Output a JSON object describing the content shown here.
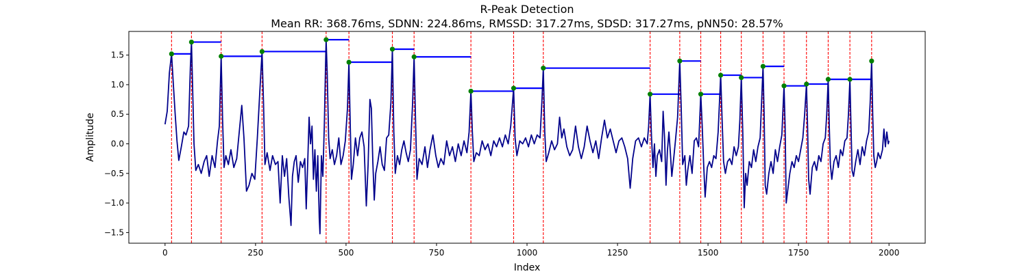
{
  "chart_data": {
    "type": "line",
    "title": "R-Peak Detection",
    "subtitle": "Mean RR: 368.76ms, SDNN: 224.86ms, RMSSD: 317.27ms, SDSD: 317.27ms, pNN50: 28.57%",
    "xlabel": "Index",
    "ylabel": "Amplitude",
    "xlim": [
      -100,
      2100
    ],
    "ylim": [
      -1.68,
      1.9
    ],
    "xticks": [
      0,
      250,
      500,
      750,
      1000,
      1250,
      1500,
      1750,
      2000
    ],
    "yticks": [
      -1.5,
      -1.0,
      -0.5,
      0.0,
      0.5,
      1.0,
      1.5
    ],
    "ytick_labels": [
      "−1.5",
      "−1.0",
      "−0.5",
      "0.0",
      "0.5",
      "1.0",
      "1.5"
    ],
    "grid": false,
    "colors": {
      "signal": "#00008b",
      "peak_line": "#ff0000",
      "peak_marker": "#008000",
      "rr_segment": "#0000ff"
    },
    "peaks": [
      {
        "x": 18,
        "y": 1.52
      },
      {
        "x": 73,
        "y": 1.72
      },
      {
        "x": 155,
        "y": 1.48
      },
      {
        "x": 268,
        "y": 1.56
      },
      {
        "x": 445,
        "y": 1.76
      },
      {
        "x": 508,
        "y": 1.38
      },
      {
        "x": 628,
        "y": 1.6
      },
      {
        "x": 688,
        "y": 1.47
      },
      {
        "x": 845,
        "y": 0.89
      },
      {
        "x": 963,
        "y": 0.94
      },
      {
        "x": 1045,
        "y": 1.28
      },
      {
        "x": 1340,
        "y": 0.84
      },
      {
        "x": 1422,
        "y": 1.4
      },
      {
        "x": 1480,
        "y": 0.84
      },
      {
        "x": 1535,
        "y": 1.16
      },
      {
        "x": 1592,
        "y": 1.12
      },
      {
        "x": 1652,
        "y": 1.31
      },
      {
        "x": 1710,
        "y": 0.98
      },
      {
        "x": 1772,
        "y": 1.01
      },
      {
        "x": 1832,
        "y": 1.09
      },
      {
        "x": 1892,
        "y": 1.09
      },
      {
        "x": 1952,
        "y": 1.4
      }
    ],
    "signal": [
      [
        0,
        0.33
      ],
      [
        6,
        0.55
      ],
      [
        12,
        1.2
      ],
      [
        18,
        1.52
      ],
      [
        23,
        1.0
      ],
      [
        28,
        0.5
      ],
      [
        33,
        0.05
      ],
      [
        38,
        -0.28
      ],
      [
        45,
        -0.05
      ],
      [
        52,
        0.2
      ],
      [
        58,
        0.15
      ],
      [
        65,
        0.3
      ],
      [
        70,
        1.3
      ],
      [
        73,
        1.72
      ],
      [
        76,
        1.0
      ],
      [
        80,
        0.0
      ],
      [
        85,
        -0.45
      ],
      [
        92,
        -0.35
      ],
      [
        100,
        -0.5
      ],
      [
        108,
        -0.3
      ],
      [
        115,
        -0.2
      ],
      [
        122,
        -0.55
      ],
      [
        130,
        -0.2
      ],
      [
        138,
        -0.4
      ],
      [
        145,
        0.05
      ],
      [
        150,
        0.3
      ],
      [
        155,
        1.48
      ],
      [
        159,
        0.4
      ],
      [
        163,
        -0.4
      ],
      [
        168,
        -0.2
      ],
      [
        175,
        -0.35
      ],
      [
        182,
        -0.1
      ],
      [
        190,
        -0.4
      ],
      [
        198,
        -0.25
      ],
      [
        205,
        0.2
      ],
      [
        212,
        0.65
      ],
      [
        218,
        0.1
      ],
      [
        225,
        -0.8
      ],
      [
        232,
        -0.7
      ],
      [
        240,
        -0.5
      ],
      [
        248,
        -0.6
      ],
      [
        255,
        0.1
      ],
      [
        262,
        0.9
      ],
      [
        268,
        1.56
      ],
      [
        272,
        0.7
      ],
      [
        276,
        -0.35
      ],
      [
        282,
        -0.15
      ],
      [
        290,
        -0.45
      ],
      [
        297,
        -0.2
      ],
      [
        305,
        -0.35
      ],
      [
        312,
        -0.3
      ],
      [
        318,
        -1.0
      ],
      [
        324,
        -0.2
      ],
      [
        330,
        -0.55
      ],
      [
        336,
        -0.25
      ],
      [
        342,
        -0.9
      ],
      [
        348,
        -1.38
      ],
      [
        352,
        -0.55
      ],
      [
        357,
        -0.3
      ],
      [
        362,
        -0.2
      ],
      [
        368,
        -0.65
      ],
      [
        374,
        -0.3
      ],
      [
        380,
        -0.4
      ],
      [
        386,
        -0.25
      ],
      [
        390,
        -1.1
      ],
      [
        394,
        -0.35
      ],
      [
        398,
        0.45
      ],
      [
        402,
        0.0
      ],
      [
        406,
        0.3
      ],
      [
        410,
        -0.6
      ],
      [
        414,
        -0.1
      ],
      [
        418,
        -0.8
      ],
      [
        422,
        -0.2
      ],
      [
        426,
        -1.25
      ],
      [
        428,
        -1.52
      ],
      [
        432,
        -0.2
      ],
      [
        436,
        -0.55
      ],
      [
        440,
        0.3
      ],
      [
        443,
        1.2
      ],
      [
        445,
        1.76
      ],
      [
        448,
        1.2
      ],
      [
        452,
        0.1
      ],
      [
        456,
        -0.25
      ],
      [
        462,
        -0.1
      ],
      [
        468,
        -0.35
      ],
      [
        474,
        -0.2
      ],
      [
        480,
        0.1
      ],
      [
        486,
        -0.35
      ],
      [
        492,
        -0.2
      ],
      [
        498,
        0.05
      ],
      [
        504,
        0.6
      ],
      [
        508,
        1.38
      ],
      [
        511,
        0.5
      ],
      [
        515,
        -0.6
      ],
      [
        520,
        -0.35
      ],
      [
        526,
        0.1
      ],
      [
        532,
        -0.2
      ],
      [
        538,
        0.1
      ],
      [
        544,
        0.2
      ],
      [
        550,
        -0.05
      ],
      [
        556,
        -1.05
      ],
      [
        561,
        -0.35
      ],
      [
        566,
        0.75
      ],
      [
        570,
        0.6
      ],
      [
        574,
        -0.3
      ],
      [
        578,
        -0.95
      ],
      [
        582,
        -0.5
      ],
      [
        588,
        -0.3
      ],
      [
        594,
        -0.05
      ],
      [
        600,
        -0.35
      ],
      [
        606,
        -0.45
      ],
      [
        612,
        0.1
      ],
      [
        618,
        0.15
      ],
      [
        624,
        0.7
      ],
      [
        628,
        1.6
      ],
      [
        632,
        0.2
      ],
      [
        636,
        -0.5
      ],
      [
        642,
        -0.2
      ],
      [
        648,
        -0.35
      ],
      [
        654,
        -0.1
      ],
      [
        660,
        0.05
      ],
      [
        666,
        -0.15
      ],
      [
        672,
        -0.3
      ],
      [
        678,
        -0.1
      ],
      [
        684,
        0.7
      ],
      [
        688,
        1.47
      ],
      [
        692,
        0.4
      ],
      [
        696,
        -0.6
      ],
      [
        702,
        -0.25
      ],
      [
        710,
        -0.35
      ],
      [
        718,
        -0.05
      ],
      [
        725,
        -0.4
      ],
      [
        732,
        -0.1
      ],
      [
        740,
        0.15
      ],
      [
        748,
        -0.2
      ],
      [
        755,
        -0.4
      ],
      [
        762,
        -0.25
      ],
      [
        770,
        -0.35
      ],
      [
        778,
        0.05
      ],
      [
        786,
        -0.2
      ],
      [
        794,
        -0.05
      ],
      [
        802,
        -0.3
      ],
      [
        810,
        0.0
      ],
      [
        818,
        -0.2
      ],
      [
        826,
        0.05
      ],
      [
        834,
        -0.15
      ],
      [
        840,
        0.2
      ],
      [
        845,
        0.89
      ],
      [
        849,
        0.2
      ],
      [
        853,
        -0.3
      ],
      [
        860,
        -0.15
      ],
      [
        868,
        -0.2
      ],
      [
        876,
        0.05
      ],
      [
        884,
        -0.1
      ],
      [
        892,
        0.0
      ],
      [
        900,
        -0.2
      ],
      [
        908,
        0.05
      ],
      [
        916,
        -0.05
      ],
      [
        924,
        0.1
      ],
      [
        932,
        -0.05
      ],
      [
        940,
        0.15
      ],
      [
        948,
        0.0
      ],
      [
        955,
        0.3
      ],
      [
        963,
        0.94
      ],
      [
        967,
        0.1
      ],
      [
        972,
        -0.2
      ],
      [
        980,
        0.05
      ],
      [
        988,
        0.0
      ],
      [
        996,
        0.1
      ],
      [
        1004,
        -0.05
      ],
      [
        1012,
        0.15
      ],
      [
        1020,
        0.0
      ],
      [
        1028,
        0.15
      ],
      [
        1036,
        0.1
      ],
      [
        1041,
        0.7
      ],
      [
        1045,
        1.28
      ],
      [
        1049,
        0.2
      ],
      [
        1053,
        -0.3
      ],
      [
        1060,
        -0.15
      ],
      [
        1068,
        0.05
      ],
      [
        1076,
        -0.1
      ],
      [
        1084,
        0.0
      ],
      [
        1090,
        0.45
      ],
      [
        1096,
        0.1
      ],
      [
        1102,
        0.25
      ],
      [
        1110,
        -0.05
      ],
      [
        1118,
        -0.2
      ],
      [
        1126,
        -0.1
      ],
      [
        1134,
        0.3
      ],
      [
        1142,
        -0.05
      ],
      [
        1150,
        -0.25
      ],
      [
        1158,
        -0.05
      ],
      [
        1166,
        0.3
      ],
      [
        1174,
        0.05
      ],
      [
        1182,
        -0.15
      ],
      [
        1190,
        0.05
      ],
      [
        1198,
        -0.25
      ],
      [
        1206,
        0.1
      ],
      [
        1214,
        0.4
      ],
      [
        1222,
        0.1
      ],
      [
        1230,
        0.25
      ],
      [
        1238,
        0.05
      ],
      [
        1246,
        -0.15
      ],
      [
        1254,
        0.05
      ],
      [
        1262,
        0.1
      ],
      [
        1270,
        -0.05
      ],
      [
        1278,
        -0.25
      ],
      [
        1285,
        -0.75
      ],
      [
        1292,
        -0.25
      ],
      [
        1300,
        0.05
      ],
      [
        1308,
        0.1
      ],
      [
        1316,
        -0.05
      ],
      [
        1324,
        0.1
      ],
      [
        1332,
        0.0
      ],
      [
        1336,
        0.3
      ],
      [
        1340,
        0.84
      ],
      [
        1344,
        0.1
      ],
      [
        1348,
        -0.4
      ],
      [
        1352,
        0.0
      ],
      [
        1356,
        -0.55
      ],
      [
        1360,
        -0.2
      ],
      [
        1366,
        -0.1
      ],
      [
        1372,
        -0.3
      ],
      [
        1376,
        0.55
      ],
      [
        1380,
        0.1
      ],
      [
        1384,
        -0.7
      ],
      [
        1388,
        -0.1
      ],
      [
        1392,
        0.2
      ],
      [
        1396,
        -0.15
      ],
      [
        1400,
        -0.55
      ],
      [
        1406,
        -0.2
      ],
      [
        1410,
        0.05
      ],
      [
        1416,
        0.45
      ],
      [
        1422,
        1.4
      ],
      [
        1426,
        0.6
      ],
      [
        1430,
        -0.35
      ],
      [
        1436,
        -0.2
      ],
      [
        1440,
        -0.7
      ],
      [
        1444,
        -0.45
      ],
      [
        1450,
        -0.2
      ],
      [
        1456,
        -0.5
      ],
      [
        1462,
        0.05
      ],
      [
        1468,
        0.1
      ],
      [
        1474,
        -0.05
      ],
      [
        1480,
        0.84
      ],
      [
        1484,
        0.3
      ],
      [
        1488,
        -0.35
      ],
      [
        1492,
        -0.9
      ],
      [
        1498,
        -0.4
      ],
      [
        1504,
        -0.3
      ],
      [
        1510,
        -0.4
      ],
      [
        1516,
        -0.2
      ],
      [
        1522,
        -0.25
      ],
      [
        1528,
        0.2
      ],
      [
        1535,
        1.16
      ],
      [
        1539,
        0.4
      ],
      [
        1543,
        -0.3
      ],
      [
        1548,
        -0.5
      ],
      [
        1554,
        -0.3
      ],
      [
        1560,
        -0.25
      ],
      [
        1566,
        -0.35
      ],
      [
        1572,
        -0.05
      ],
      [
        1578,
        -0.2
      ],
      [
        1584,
        -0.05
      ],
      [
        1588,
        0.4
      ],
      [
        1592,
        1.12
      ],
      [
        1596,
        0.2
      ],
      [
        1600,
        -1.08
      ],
      [
        1604,
        -0.5
      ],
      [
        1608,
        -0.7
      ],
      [
        1614,
        -0.3
      ],
      [
        1620,
        -0.4
      ],
      [
        1626,
        -0.1
      ],
      [
        1632,
        -0.3
      ],
      [
        1638,
        -0.05
      ],
      [
        1644,
        0.1
      ],
      [
        1648,
        0.7
      ],
      [
        1652,
        1.31
      ],
      [
        1655,
        0.5
      ],
      [
        1658,
        -0.7
      ],
      [
        1662,
        -0.85
      ],
      [
        1668,
        -0.5
      ],
      [
        1674,
        -0.3
      ],
      [
        1680,
        -0.5
      ],
      [
        1686,
        -0.1
      ],
      [
        1692,
        -0.3
      ],
      [
        1698,
        -0.05
      ],
      [
        1704,
        0.15
      ],
      [
        1710,
        0.98
      ],
      [
        1713,
        0.3
      ],
      [
        1716,
        -1.0
      ],
      [
        1720,
        -0.8
      ],
      [
        1726,
        -0.5
      ],
      [
        1732,
        -0.3
      ],
      [
        1738,
        -0.4
      ],
      [
        1744,
        -0.2
      ],
      [
        1750,
        -0.3
      ],
      [
        1756,
        -0.1
      ],
      [
        1762,
        0.1
      ],
      [
        1767,
        0.5
      ],
      [
        1772,
        1.01
      ],
      [
        1775,
        0.3
      ],
      [
        1778,
        -0.6
      ],
      [
        1782,
        -0.85
      ],
      [
        1788,
        -0.4
      ],
      [
        1794,
        -0.3
      ],
      [
        1800,
        -0.45
      ],
      [
        1806,
        -0.2
      ],
      [
        1812,
        -0.3
      ],
      [
        1818,
        0.0
      ],
      [
        1824,
        0.1
      ],
      [
        1828,
        0.5
      ],
      [
        1832,
        1.09
      ],
      [
        1835,
        0.3
      ],
      [
        1838,
        -0.35
      ],
      [
        1842,
        -0.6
      ],
      [
        1848,
        -0.3
      ],
      [
        1854,
        -0.2
      ],
      [
        1860,
        -0.4
      ],
      [
        1866,
        -0.1
      ],
      [
        1872,
        -0.2
      ],
      [
        1878,
        0.05
      ],
      [
        1884,
        0.1
      ],
      [
        1888,
        0.5
      ],
      [
        1892,
        1.09
      ],
      [
        1895,
        0.3
      ],
      [
        1898,
        -0.45
      ],
      [
        1902,
        -0.55
      ],
      [
        1908,
        -0.3
      ],
      [
        1914,
        -0.1
      ],
      [
        1920,
        -0.35
      ],
      [
        1926,
        -0.05
      ],
      [
        1932,
        -0.2
      ],
      [
        1938,
        0.05
      ],
      [
        1944,
        0.2
      ],
      [
        1948,
        0.7
      ],
      [
        1952,
        1.4
      ],
      [
        1955,
        0.5
      ],
      [
        1958,
        -0.2
      ],
      [
        1962,
        -0.4
      ],
      [
        1966,
        -0.3
      ],
      [
        1970,
        -0.15
      ],
      [
        1976,
        -0.25
      ],
      [
        1982,
        -0.1
      ],
      [
        1986,
        0.25
      ],
      [
        1990,
        -0.05
      ],
      [
        1994,
        0.2
      ],
      [
        1998,
        0.0
      ],
      [
        2000,
        0.05
      ]
    ]
  }
}
